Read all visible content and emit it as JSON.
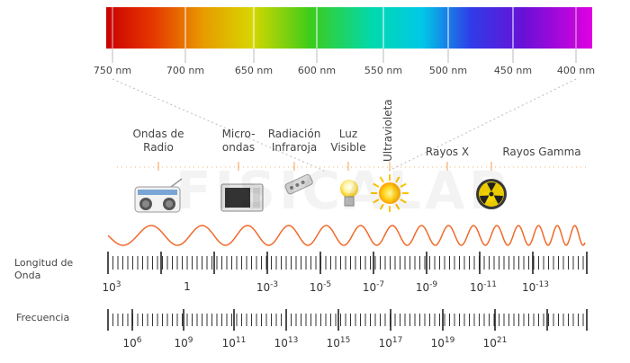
{
  "spectrum": {
    "nm_labels": [
      "750 nm",
      "700 nm",
      "650 nm",
      "600 nm",
      "550 nm",
      "500 nm",
      "450 nm",
      "400 nm"
    ]
  },
  "bands": [
    {
      "id": "radio",
      "line1": "Ondas de",
      "line2": "Radio",
      "icon": "radio-icon"
    },
    {
      "id": "micro",
      "line1": "Micro-",
      "line2": "ondas",
      "icon": "microwave-icon"
    },
    {
      "id": "infrared",
      "line1": "Radiación",
      "line2": "Infraroja",
      "icon": "remote-control-icon"
    },
    {
      "id": "visible",
      "line1": "Luz",
      "line2": "Visible",
      "icon": "light-bulb-icon"
    },
    {
      "id": "ultraviolet",
      "line1": "Ultravioleta",
      "line2": "",
      "icon": "sun-icon"
    },
    {
      "id": "xray",
      "line1": "Rayos X",
      "line2": "",
      "icon": ""
    },
    {
      "id": "gamma",
      "line1": "Rayos Gamma",
      "line2": "",
      "icon": "radiation-icon"
    }
  ],
  "wavelength": {
    "label_line1": "Longitud de",
    "label_line2": "Onda",
    "ticks": [
      {
        "base": "10",
        "exp": "3"
      },
      {
        "base": "1",
        "exp": ""
      },
      {
        "base": "10",
        "exp": "-3"
      },
      {
        "base": "10",
        "exp": "-5"
      },
      {
        "base": "10",
        "exp": "-7"
      },
      {
        "base": "10",
        "exp": "-9"
      },
      {
        "base": "10",
        "exp": "-11"
      },
      {
        "base": "10",
        "exp": "-13"
      }
    ]
  },
  "frequency": {
    "label": "Frecuencia",
    "ticks": [
      {
        "base": "10",
        "exp": "6"
      },
      {
        "base": "10",
        "exp": "9"
      },
      {
        "base": "10",
        "exp": "11"
      },
      {
        "base": "10",
        "exp": "13"
      },
      {
        "base": "10",
        "exp": "15"
      },
      {
        "base": "10",
        "exp": "17"
      },
      {
        "base": "10",
        "exp": "19"
      },
      {
        "base": "10",
        "exp": "21"
      }
    ]
  },
  "watermark": "FISICALAB",
  "colors": {
    "wave": "#f06a2a",
    "band_line": "#f3b06a",
    "ruler": "#333333"
  }
}
